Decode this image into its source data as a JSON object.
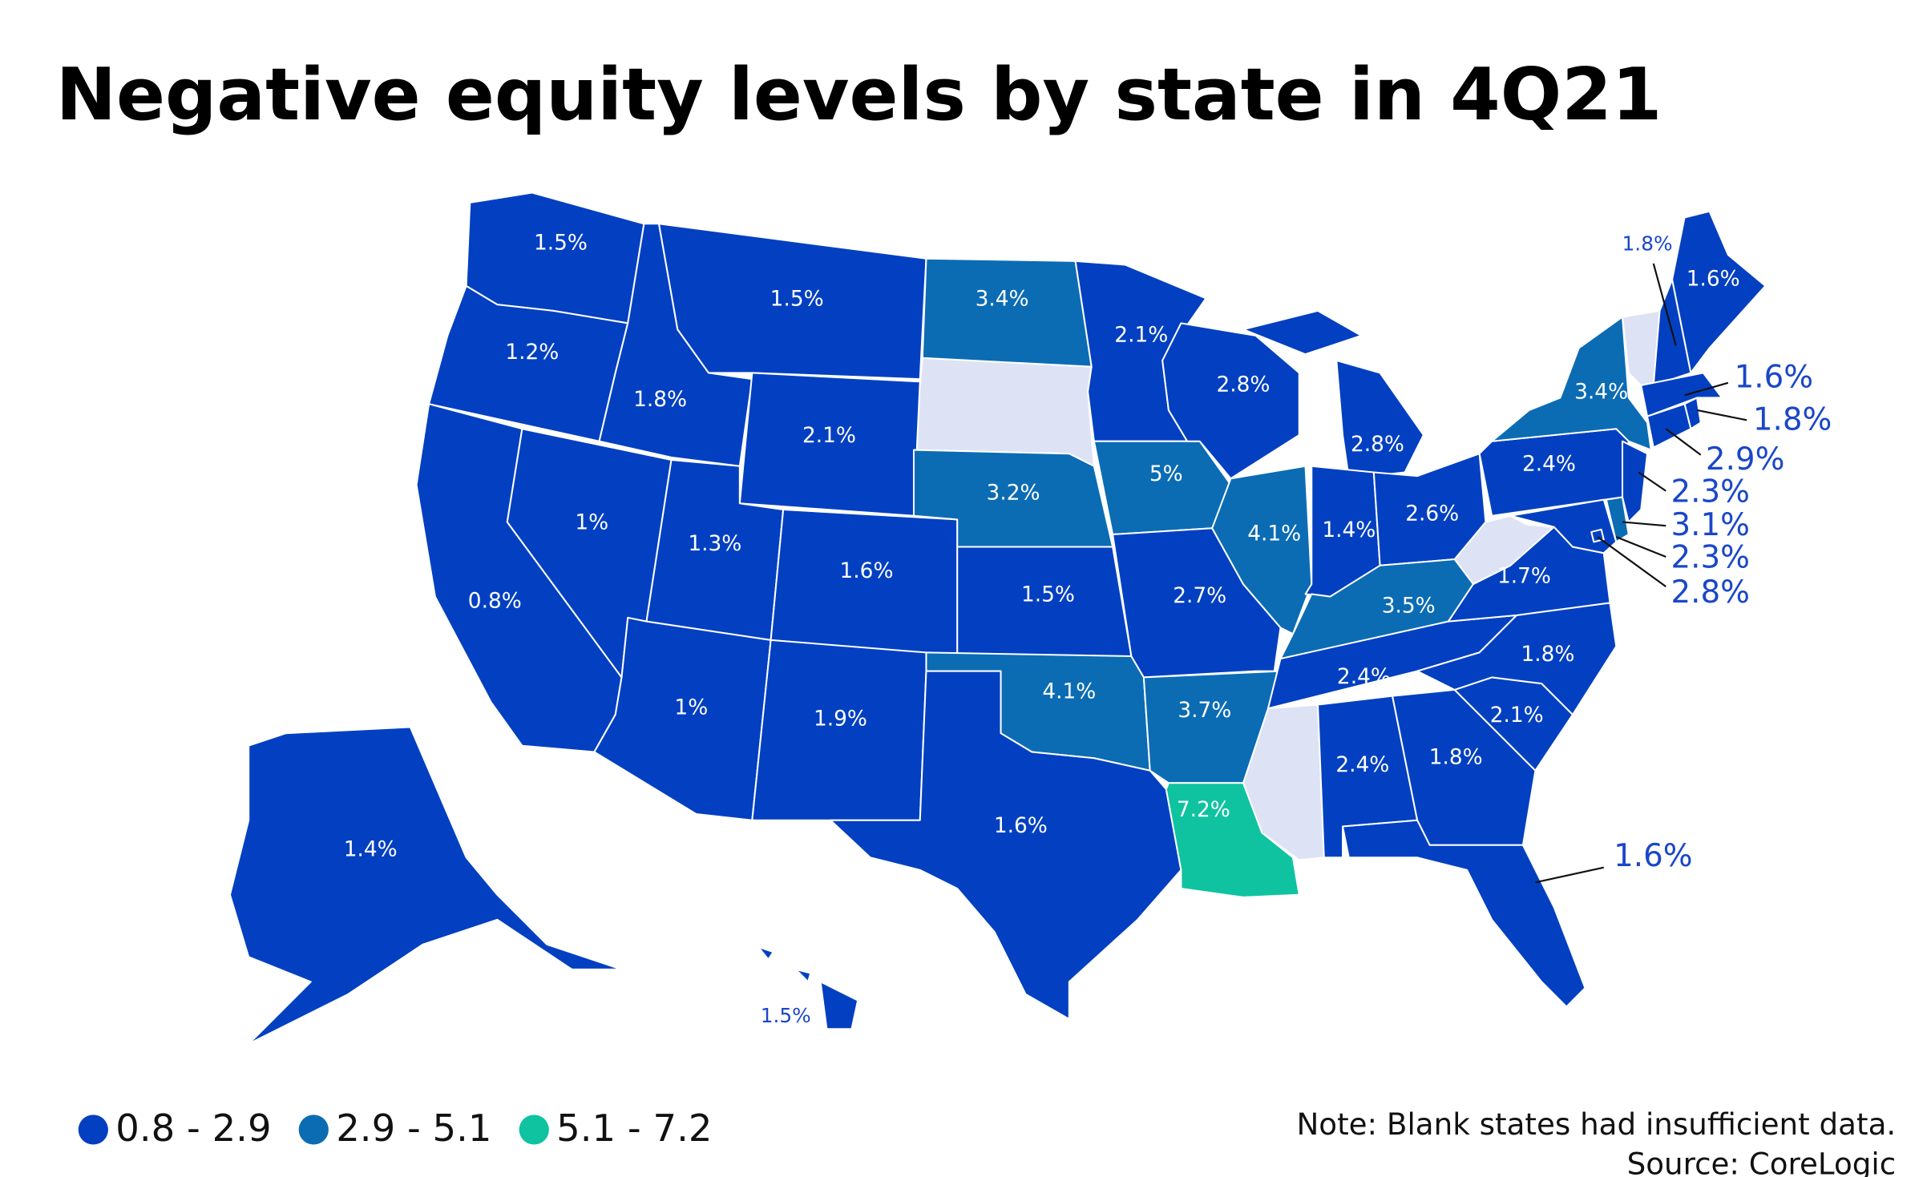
{
  "chart_data": {
    "type": "map",
    "title": "Negative equity levels by state in 4Q21",
    "legend": [
      {
        "label": "0.8 - 2.9",
        "range": [
          0.8,
          2.9
        ],
        "color": "#0340c1"
      },
      {
        "label": "2.9 - 5.1",
        "range": [
          2.9,
          5.1
        ],
        "color": "#0b6cb4"
      },
      {
        "label": "5.1 - 7.2",
        "range": [
          5.1,
          7.2
        ],
        "color": "#0fc3a0"
      }
    ],
    "values": [
      1.5,
      1.2,
      0.8,
      1,
      1.8,
      1.5,
      2.1,
      1.3,
      1.6,
      1,
      1.9,
      3.4,
      3.2,
      1.5,
      4.1,
      1.6,
      2.1,
      5,
      2.7,
      3.7,
      7.2,
      2.8,
      4.1,
      2.8,
      1.4,
      2.6,
      3.5,
      2.4,
      2.4,
      1.8,
      1.6,
      2.1,
      1.8,
      1.7,
      2.4,
      3.4,
      1.6,
      1.8,
      1.6,
      1.8,
      2.9,
      2.3,
      3.1,
      2.3,
      2.8,
      1.4,
      1.5
    ],
    "value_labels": [
      "1.5%",
      "1.2%",
      "0.8%",
      "1%",
      "1.8%",
      "1.5%",
      "2.1%",
      "1.3%",
      "1.6%",
      "1%",
      "1.9%",
      "3.4%",
      "3.2%",
      "1.5%",
      "4.1%",
      "1.6%",
      "2.1%",
      "5%",
      "2.7%",
      "3.7%",
      "7.2%",
      "2.8%",
      "4.1%",
      "2.8%",
      "1.4%",
      "2.6%",
      "3.5%",
      "2.4%",
      "2.4%",
      "1.8%",
      "1.6%",
      "2.1%",
      "1.8%",
      "1.7%",
      "2.4%",
      "3.4%",
      "1.6%",
      "1.8%",
      "1.6%",
      "1.8%",
      "2.9%",
      "2.3%",
      "3.1%",
      "2.3%",
      "2.8%",
      "1.4%",
      "1.5%"
    ],
    "note": "Note: Blank states had insufficient data.",
    "source": "Source: CoreLogic"
  }
}
